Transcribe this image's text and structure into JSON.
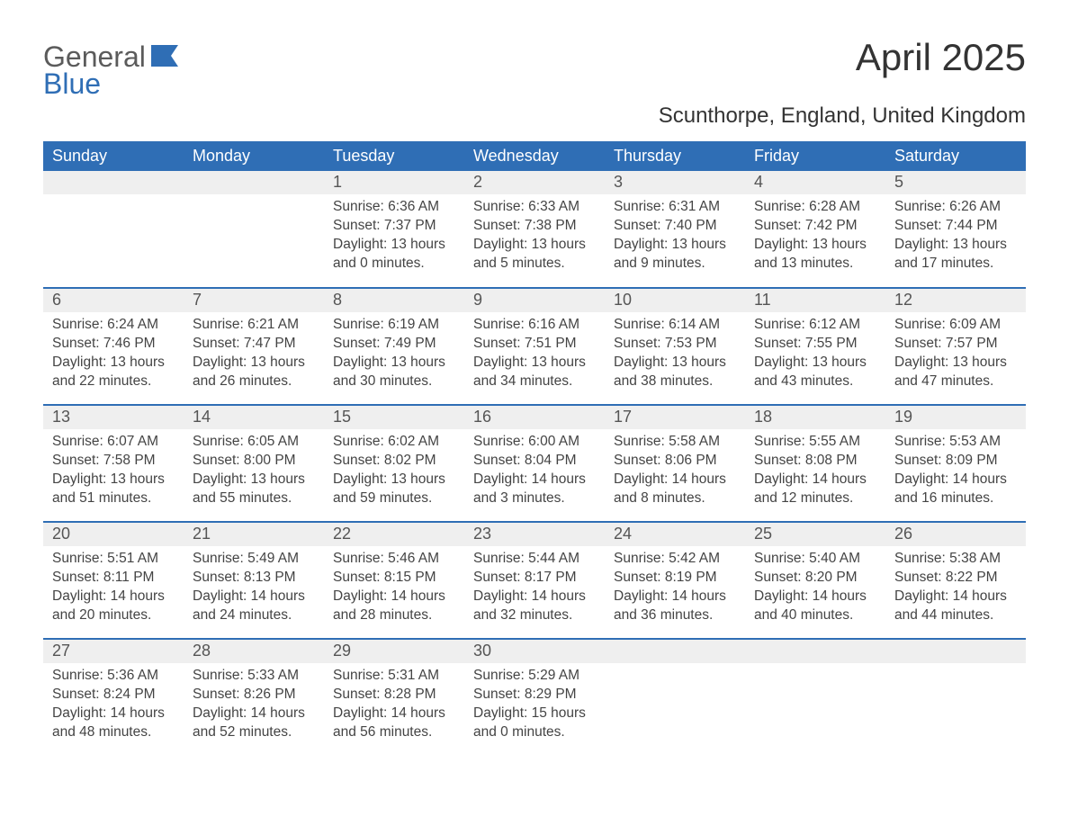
{
  "logo": {
    "part1": "General",
    "part2": "Blue",
    "icon_color": "#2f6eb5"
  },
  "title": "April 2025",
  "subtitle": "Scunthorpe, England, United Kingdom",
  "header_bg": "#2f6eb5",
  "header_text_color": "#ffffff",
  "daybar_bg": "#efefef",
  "text_color": "#444444",
  "font_family": "Segoe UI, Arial, sans-serif",
  "day_headers": [
    "Sunday",
    "Monday",
    "Tuesday",
    "Wednesday",
    "Thursday",
    "Friday",
    "Saturday"
  ],
  "weeks": [
    [
      null,
      null,
      {
        "n": "1",
        "sunrise": "6:36 AM",
        "sunset": "7:37 PM",
        "daylight": "13 hours and 0 minutes."
      },
      {
        "n": "2",
        "sunrise": "6:33 AM",
        "sunset": "7:38 PM",
        "daylight": "13 hours and 5 minutes."
      },
      {
        "n": "3",
        "sunrise": "6:31 AM",
        "sunset": "7:40 PM",
        "daylight": "13 hours and 9 minutes."
      },
      {
        "n": "4",
        "sunrise": "6:28 AM",
        "sunset": "7:42 PM",
        "daylight": "13 hours and 13 minutes."
      },
      {
        "n": "5",
        "sunrise": "6:26 AM",
        "sunset": "7:44 PM",
        "daylight": "13 hours and 17 minutes."
      }
    ],
    [
      {
        "n": "6",
        "sunrise": "6:24 AM",
        "sunset": "7:46 PM",
        "daylight": "13 hours and 22 minutes."
      },
      {
        "n": "7",
        "sunrise": "6:21 AM",
        "sunset": "7:47 PM",
        "daylight": "13 hours and 26 minutes."
      },
      {
        "n": "8",
        "sunrise": "6:19 AM",
        "sunset": "7:49 PM",
        "daylight": "13 hours and 30 minutes."
      },
      {
        "n": "9",
        "sunrise": "6:16 AM",
        "sunset": "7:51 PM",
        "daylight": "13 hours and 34 minutes."
      },
      {
        "n": "10",
        "sunrise": "6:14 AM",
        "sunset": "7:53 PM",
        "daylight": "13 hours and 38 minutes."
      },
      {
        "n": "11",
        "sunrise": "6:12 AM",
        "sunset": "7:55 PM",
        "daylight": "13 hours and 43 minutes."
      },
      {
        "n": "12",
        "sunrise": "6:09 AM",
        "sunset": "7:57 PM",
        "daylight": "13 hours and 47 minutes."
      }
    ],
    [
      {
        "n": "13",
        "sunrise": "6:07 AM",
        "sunset": "7:58 PM",
        "daylight": "13 hours and 51 minutes."
      },
      {
        "n": "14",
        "sunrise": "6:05 AM",
        "sunset": "8:00 PM",
        "daylight": "13 hours and 55 minutes."
      },
      {
        "n": "15",
        "sunrise": "6:02 AM",
        "sunset": "8:02 PM",
        "daylight": "13 hours and 59 minutes."
      },
      {
        "n": "16",
        "sunrise": "6:00 AM",
        "sunset": "8:04 PM",
        "daylight": "14 hours and 3 minutes."
      },
      {
        "n": "17",
        "sunrise": "5:58 AM",
        "sunset": "8:06 PM",
        "daylight": "14 hours and 8 minutes."
      },
      {
        "n": "18",
        "sunrise": "5:55 AM",
        "sunset": "8:08 PM",
        "daylight": "14 hours and 12 minutes."
      },
      {
        "n": "19",
        "sunrise": "5:53 AM",
        "sunset": "8:09 PM",
        "daylight": "14 hours and 16 minutes."
      }
    ],
    [
      {
        "n": "20",
        "sunrise": "5:51 AM",
        "sunset": "8:11 PM",
        "daylight": "14 hours and 20 minutes."
      },
      {
        "n": "21",
        "sunrise": "5:49 AM",
        "sunset": "8:13 PM",
        "daylight": "14 hours and 24 minutes."
      },
      {
        "n": "22",
        "sunrise": "5:46 AM",
        "sunset": "8:15 PM",
        "daylight": "14 hours and 28 minutes."
      },
      {
        "n": "23",
        "sunrise": "5:44 AM",
        "sunset": "8:17 PM",
        "daylight": "14 hours and 32 minutes."
      },
      {
        "n": "24",
        "sunrise": "5:42 AM",
        "sunset": "8:19 PM",
        "daylight": "14 hours and 36 minutes."
      },
      {
        "n": "25",
        "sunrise": "5:40 AM",
        "sunset": "8:20 PM",
        "daylight": "14 hours and 40 minutes."
      },
      {
        "n": "26",
        "sunrise": "5:38 AM",
        "sunset": "8:22 PM",
        "daylight": "14 hours and 44 minutes."
      }
    ],
    [
      {
        "n": "27",
        "sunrise": "5:36 AM",
        "sunset": "8:24 PM",
        "daylight": "14 hours and 48 minutes."
      },
      {
        "n": "28",
        "sunrise": "5:33 AM",
        "sunset": "8:26 PM",
        "daylight": "14 hours and 52 minutes."
      },
      {
        "n": "29",
        "sunrise": "5:31 AM",
        "sunset": "8:28 PM",
        "daylight": "14 hours and 56 minutes."
      },
      {
        "n": "30",
        "sunrise": "5:29 AM",
        "sunset": "8:29 PM",
        "daylight": "15 hours and 0 minutes."
      },
      null,
      null,
      null
    ]
  ],
  "labels": {
    "sunrise": "Sunrise: ",
    "sunset": "Sunset: ",
    "daylight": "Daylight: "
  }
}
